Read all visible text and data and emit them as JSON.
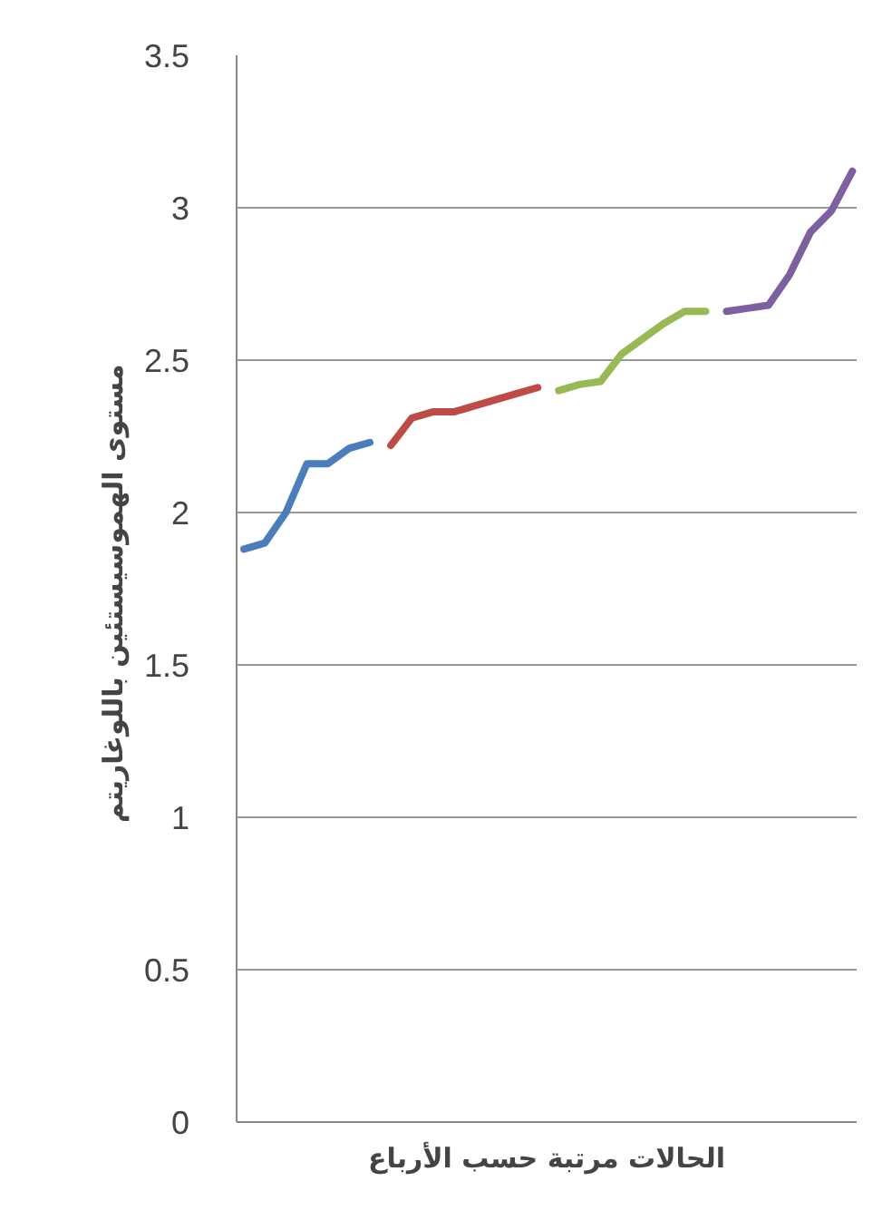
{
  "chart_data": {
    "type": "line",
    "xlabel": "الحالات مرتبة حسب الأرباع",
    "ylabel": "مستوى الهموسيستئين  باللوغاريتم",
    "categories": [
      null,
      null,
      null,
      null,
      null,
      null,
      null,
      null,
      null,
      null,
      null,
      null,
      null,
      null,
      null,
      null,
      null,
      null,
      null,
      null,
      null,
      null,
      null,
      null,
      null,
      null,
      null,
      null,
      null,
      null
    ],
    "series": [
      {
        "color": "#4a7ebb",
        "values": [
          1.88,
          1.9,
          2.0,
          2.16,
          2.16,
          2.21,
          2.23,
          null,
          null,
          null,
          null,
          null,
          null,
          null,
          null,
          null,
          null,
          null,
          null,
          null,
          null,
          null,
          null,
          null,
          null,
          null,
          null,
          null,
          null,
          null
        ]
      },
      {
        "color": "#be4b48",
        "values": [
          null,
          null,
          null,
          null,
          null,
          null,
          null,
          2.22,
          2.31,
          2.33,
          2.33,
          2.35,
          2.37,
          2.39,
          2.41,
          null,
          null,
          null,
          null,
          null,
          null,
          null,
          null,
          null,
          null,
          null,
          null,
          null,
          null,
          null
        ]
      },
      {
        "color": "#98b954",
        "values": [
          null,
          null,
          null,
          null,
          null,
          null,
          null,
          null,
          null,
          null,
          null,
          null,
          null,
          null,
          null,
          2.4,
          2.42,
          2.43,
          2.52,
          2.57,
          2.62,
          2.66,
          2.66,
          null,
          null,
          null,
          null,
          null,
          null,
          null
        ]
      },
      {
        "color": "#7d60a0",
        "values": [
          null,
          null,
          null,
          null,
          null,
          null,
          null,
          null,
          null,
          null,
          null,
          null,
          null,
          null,
          null,
          null,
          null,
          null,
          null,
          null,
          null,
          null,
          null,
          2.66,
          2.67,
          2.68,
          2.78,
          2.92,
          2.99,
          3.12
        ]
      }
    ],
    "ylim": [
      0,
      3.5
    ],
    "yticks": [
      0,
      0.5,
      1,
      1.5,
      2,
      2.5,
      3,
      3.5
    ],
    "grid": "y",
    "tick_labels": "y",
    "marker": "none",
    "line_style": "solid"
  }
}
